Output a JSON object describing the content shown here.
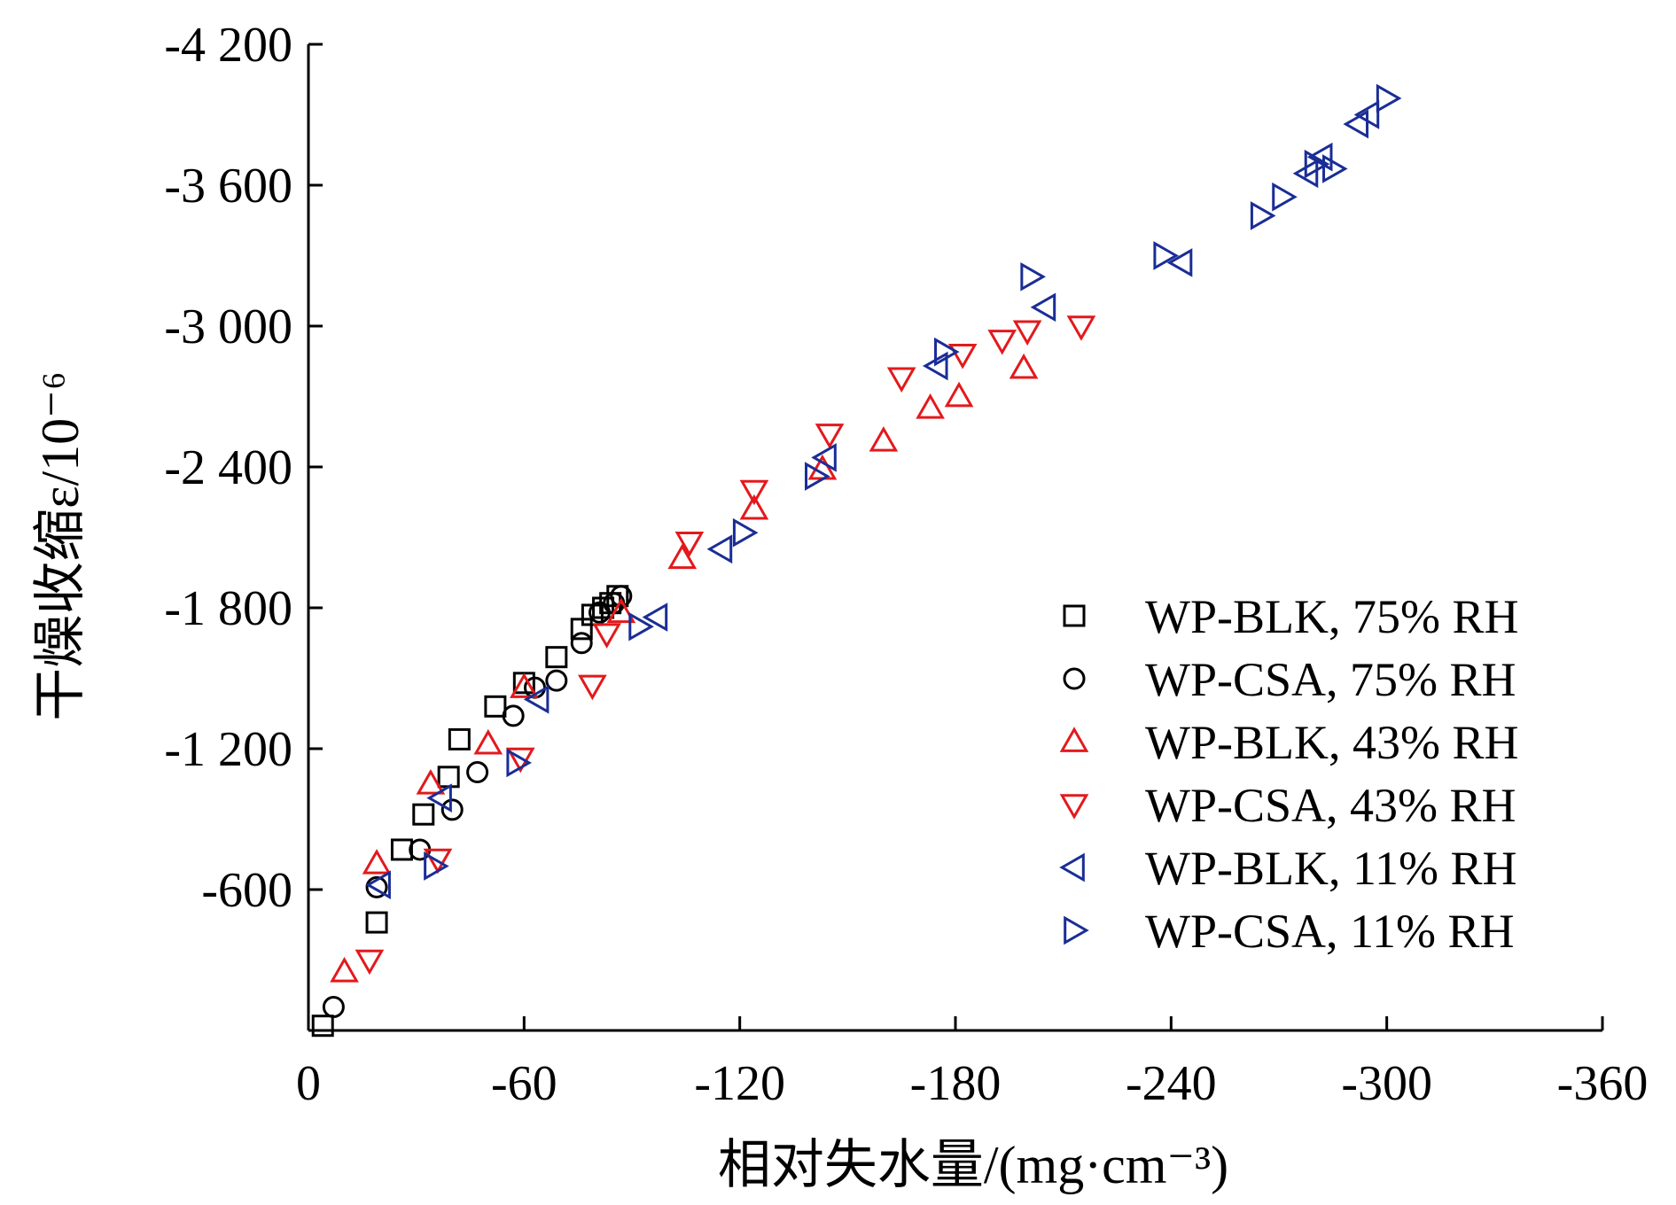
{
  "chart_data": {
    "type": "scatter",
    "xlabel": "相对失水量/(mg·cm⁻³)",
    "ylabel": "干燥收缩ε/10⁻⁶",
    "xlim": [
      0,
      -360
    ],
    "ylim": [
      0,
      -4200
    ],
    "x_ticks": [
      0,
      -60,
      -120,
      -180,
      -240,
      -300,
      -360
    ],
    "x_tick_labels": [
      "0",
      "-60",
      "-120",
      "-180",
      "-240",
      "-300",
      "-360"
    ],
    "y_ticks": [
      -600,
      -1200,
      -1800,
      -2400,
      -3000,
      -3600,
      -4200
    ],
    "y_tick_labels": [
      "-600",
      "-1 200",
      "-1 800",
      "-2 400",
      "-3 000",
      "-3 600",
      "-4 200"
    ],
    "grid": false,
    "legend_position": "bottom-right",
    "series": [
      {
        "name": "WP-BLK, 75% RH",
        "marker": "square",
        "color": "#000000",
        "points": [
          [
            -4,
            -20
          ],
          [
            -19,
            -460
          ],
          [
            -26,
            -770
          ],
          [
            -32,
            -920
          ],
          [
            -39,
            -1080
          ],
          [
            -42,
            -1240
          ],
          [
            -52,
            -1380
          ],
          [
            -60,
            -1480
          ],
          [
            -69,
            -1590
          ],
          [
            -76,
            -1710
          ],
          [
            -79,
            -1770
          ],
          [
            -82,
            -1800
          ],
          [
            -84,
            -1820
          ],
          [
            -86,
            -1850
          ]
        ]
      },
      {
        "name": "WP-CSA, 75% RH",
        "marker": "circle",
        "color": "#000000",
        "points": [
          [
            -7,
            -100
          ],
          [
            -19,
            -610
          ],
          [
            -31,
            -770
          ],
          [
            -40,
            -940
          ],
          [
            -47,
            -1100
          ],
          [
            -57,
            -1340
          ],
          [
            -63,
            -1460
          ],
          [
            -69,
            -1490
          ],
          [
            -76,
            -1650
          ],
          [
            -81,
            -1780
          ],
          [
            -85,
            -1820
          ],
          [
            -87,
            -1850
          ]
        ]
      },
      {
        "name": "WP-BLK, 43% RH",
        "marker": "triangle-up",
        "color": "#e3191c",
        "points": [
          [
            -10,
            -250
          ],
          [
            -19,
            -710
          ],
          [
            -34,
            -1050
          ],
          [
            -50,
            -1220
          ],
          [
            -60,
            -1460
          ],
          [
            -87,
            -1780
          ],
          [
            -104,
            -2010
          ],
          [
            -124,
            -2220
          ],
          [
            -143,
            -2390
          ],
          [
            -160,
            -2510
          ],
          [
            -173,
            -2650
          ],
          [
            -181,
            -2700
          ],
          [
            -199,
            -2820
          ]
        ]
      },
      {
        "name": "WP-CSA, 43% RH",
        "marker": "triangle-down",
        "color": "#e3191c",
        "points": [
          [
            -17,
            -300
          ],
          [
            -36,
            -730
          ],
          [
            -59,
            -1160
          ],
          [
            -79,
            -1470
          ],
          [
            -83,
            -1690
          ],
          [
            -106,
            -2080
          ],
          [
            -124,
            -2300
          ],
          [
            -145,
            -2540
          ],
          [
            -165,
            -2780
          ],
          [
            -182,
            -2880
          ],
          [
            -193,
            -2940
          ],
          [
            -200,
            -2980
          ],
          [
            -215,
            -3000
          ]
        ]
      },
      {
        "name": "WP-BLK, 11% RH",
        "marker": "triangle-left",
        "color": "#1a2d96",
        "points": [
          [
            -20,
            -620
          ],
          [
            -37,
            -990
          ],
          [
            -64,
            -1410
          ],
          [
            -97,
            -1760
          ],
          [
            -115,
            -2050
          ],
          [
            -144,
            -2440
          ],
          [
            -175,
            -2830
          ],
          [
            -205,
            -3080
          ],
          [
            -243,
            -3270
          ],
          [
            -278,
            -3650
          ],
          [
            -282,
            -3720
          ],
          [
            -292,
            -3860
          ],
          [
            -295,
            -3900
          ]
        ]
      },
      {
        "name": "WP-CSA, 11% RH",
        "marker": "triangle-right",
        "color": "#1a2d96",
        "points": [
          [
            -35,
            -700
          ],
          [
            -58,
            -1140
          ],
          [
            -92,
            -1720
          ],
          [
            -121,
            -2120
          ],
          [
            -141,
            -2360
          ],
          [
            -177,
            -2890
          ],
          [
            -201,
            -3210
          ],
          [
            -238,
            -3300
          ],
          [
            -265,
            -3470
          ],
          [
            -271,
            -3550
          ],
          [
            -280,
            -3690
          ],
          [
            -285,
            -3670
          ],
          [
            -300,
            -3970
          ]
        ]
      }
    ]
  }
}
